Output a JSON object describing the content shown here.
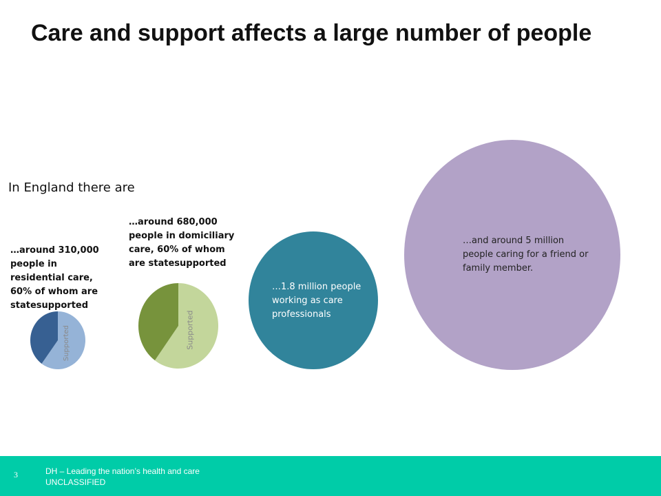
{
  "slide": {
    "title": "Care and support affects a large number of people",
    "intro": "In England there are",
    "page_number": "3",
    "footer_line1": "DH – Leading the nation’s health and care",
    "footer_line2": "UNCLASSIFIED",
    "footer_color": "#00cca8"
  },
  "chart_data": [
    {
      "type": "pie",
      "caption": "…around 310,000 people in residential care, 60% of whom are statesupported",
      "slices": [
        {
          "label": "Supported",
          "value": 60,
          "color": "#95b3d7"
        },
        {
          "label": "",
          "value": 40,
          "color": "#376092"
        }
      ]
    },
    {
      "type": "pie",
      "caption": "…around 680,000 people in domiciliary care, 60% of whom are statesupported",
      "slices": [
        {
          "label": "Supported",
          "value": 60,
          "color": "#c3d69b"
        },
        {
          "label": "",
          "value": 40,
          "color": "#77933c"
        }
      ]
    },
    {
      "type": "bubble",
      "caption": "…1.8 million people working as care professionals",
      "value": 1.8,
      "color": "#31849b"
    },
    {
      "type": "bubble",
      "caption": "…and around 5 million people caring for a friend or family member.",
      "value": 5,
      "color": "#b2a2c7"
    }
  ]
}
